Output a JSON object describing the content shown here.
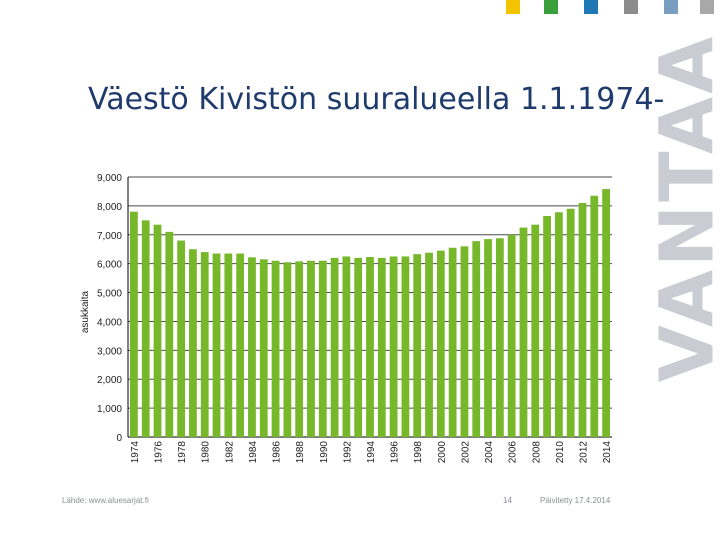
{
  "slide": {
    "title": "Väestö Kivistön suuralueella 1.1.1974-",
    "brand": "VANTAA",
    "source": "Lähde: www.aluesarjat.fi",
    "page_number": "14",
    "updated": "Päivitetty 17.4.2014",
    "accent_colors": [
      "#f5c400",
      "#3a9e3a",
      "#1f78b4",
      "#8c8c8c",
      "#7a9ebf",
      "#a8a8a8"
    ]
  },
  "chart_data": {
    "type": "bar",
    "title": "",
    "xlabel": "",
    "ylabel": "asukkaita",
    "ylim": [
      0,
      9000
    ],
    "yticks": [
      0,
      1000,
      2000,
      3000,
      4000,
      5000,
      6000,
      7000,
      8000,
      9000
    ],
    "ytick_labels": [
      "0",
      "1,000",
      "2,000",
      "3,000",
      "4,000",
      "5,000",
      "6,000",
      "7,000",
      "8,000",
      "9,000"
    ],
    "grid": true,
    "bar_color": "#76b82a",
    "categories": [
      "1974",
      "1975",
      "1976",
      "1977",
      "1978",
      "1979",
      "1980",
      "1981",
      "1982",
      "1983",
      "1984",
      "1985",
      "1986",
      "1987",
      "1988",
      "1989",
      "1990",
      "1991",
      "1992",
      "1993",
      "1994",
      "1995",
      "1996",
      "1997",
      "1998",
      "1999",
      "2000",
      "2001",
      "2002",
      "2003",
      "2004",
      "2005",
      "2006",
      "2007",
      "2008",
      "2009",
      "2010",
      "2011",
      "2012",
      "2013",
      "2014"
    ],
    "category_labels": [
      "1974",
      "",
      "1976",
      "",
      "1978",
      "",
      "1980",
      "",
      "1982",
      "",
      "1984",
      "",
      "1986",
      "",
      "1988",
      "",
      "1990",
      "",
      "1992",
      "",
      "1994",
      "",
      "1996",
      "",
      "1998",
      "",
      "2000",
      "",
      "2002",
      "",
      "2004",
      "",
      "2006",
      "",
      "2008",
      "",
      "2010",
      "",
      "2012",
      "",
      "2014"
    ],
    "values": [
      7800,
      7500,
      7350,
      7100,
      6800,
      6500,
      6400,
      6350,
      6350,
      6350,
      6220,
      6150,
      6100,
      6050,
      6080,
      6100,
      6100,
      6200,
      6250,
      6200,
      6230,
      6200,
      6250,
      6250,
      6330,
      6380,
      6450,
      6550,
      6600,
      6780,
      6850,
      6880,
      7000,
      7250,
      7350,
      7650,
      7780,
      7900,
      8100,
      8350,
      8580
    ]
  }
}
